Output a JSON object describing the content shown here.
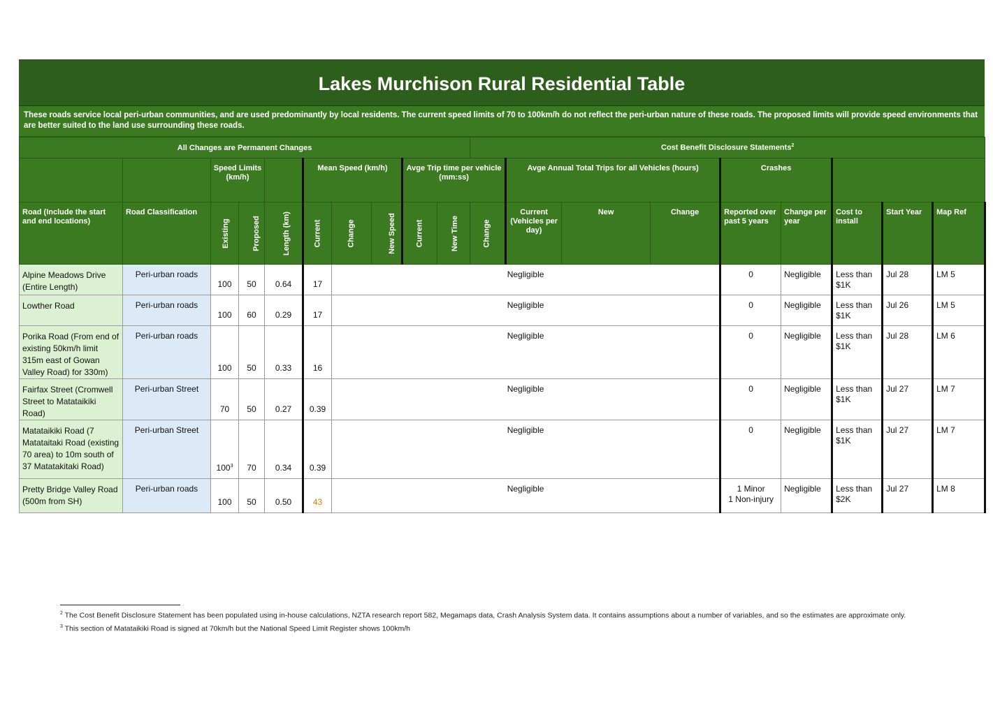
{
  "title": "Lakes Murchison Rural Residential Table",
  "intro": "These roads service local peri-urban communities, and are used predominantly by local residents.  The current speed limits of 70 to 100km/h do not reflect the peri-urban nature of these roads.  The proposed limits will provide speed environments that are better suited to the land use surrounding these roads.",
  "band": {
    "left": "All Changes are Permanent Changes",
    "right": "Cost Benefit Disclosure Statements",
    "right_sup": "2"
  },
  "groups": {
    "speed_limits": "Speed Limits (km/h)",
    "mean_speed": "Mean Speed (km/h)",
    "trip_time": "Avge Trip time per vehicle (mm:ss)",
    "annual_trips": "Avge Annual Total Trips for all Vehicles (hours)",
    "crashes": "Crashes"
  },
  "columns": {
    "road": "Road (Include the start and end locations)",
    "classification": "Road Classification",
    "existing": "Existing",
    "proposed": "Proposed",
    "length": "Length (km)",
    "ms_current": "Current",
    "ms_change": "Change",
    "ms_new": "New Speed",
    "tt_current": "Current",
    "tt_new": "New Time",
    "tt_change": "Change",
    "at_current": "Current (Vehicles per day)",
    "at_new": "New",
    "at_change": "Change",
    "cr_reported": "Reported over past 5 years",
    "cr_change": "Change per year",
    "cost": "Cost to install",
    "start": "Start Year",
    "map": "Map Ref"
  },
  "rows": [
    {
      "road": "Alpine Meadows Drive (Entire Length)",
      "classification": "Peri-urban roads",
      "existing": "100",
      "existing_sup": "",
      "proposed": "50",
      "length": "0.64",
      "mean_current": "17",
      "cbd": "Negligible",
      "crashes": "0",
      "crash_change": "Negligible",
      "cost": "Less than $1K",
      "start": "Jul 28",
      "map": "LM 5"
    },
    {
      "road": "Lowther Road",
      "classification": "Peri-urban roads",
      "existing": "100",
      "existing_sup": "",
      "proposed": "60",
      "length": "0.29",
      "mean_current": "17",
      "cbd": "Negligible",
      "crashes": "0",
      "crash_change": "Negligible",
      "cost": "Less than $1K",
      "start": "Jul 26",
      "map": "LM 5"
    },
    {
      "road": "Porika Road (From end of existing 50km/h limit 315m east of Gowan Valley Road) for 330m)",
      "classification": "Peri-urban roads",
      "existing": "100",
      "existing_sup": "",
      "proposed": "50",
      "length": "0.33",
      "mean_current": "16",
      "cbd": "Negligible",
      "crashes": "0",
      "crash_change": "Negligible",
      "cost": "Less than $1K",
      "start": "Jul 28",
      "map": "LM 6"
    },
    {
      "road": "Fairfax Street (Cromwell Street to Matataikiki Road)",
      "classification": "Peri-urban Street",
      "existing": "70",
      "existing_sup": "",
      "proposed": "50",
      "length": "0.27",
      "mean_current": "0.39",
      "cbd": "Negligible",
      "crashes": "0",
      "crash_change": "Negligible",
      "cost": "Less than $1K",
      "start": "Jul 27",
      "map": "LM 7"
    },
    {
      "road": "Matataikiki Road (7 Matataitaki Road (existing 70 area) to 10m south of 37 Matatakitaki Road)",
      "classification": "Peri-urban Street",
      "existing": "100",
      "existing_sup": "3",
      "proposed": "70",
      "length": "0.34",
      "mean_current": "0.39",
      "cbd": "Negligible",
      "crashes": "0",
      "crash_change": "Negligible",
      "cost": "Less than $1K",
      "start": "Jul 27",
      "map": "LM 7"
    },
    {
      "road": "Pretty Bridge Valley Road (500m from SH)",
      "classification": "Peri-urban roads",
      "existing": "100",
      "existing_sup": "",
      "proposed": "50",
      "length": "0.50",
      "mean_current": "43",
      "cbd": "Negligible",
      "crashes": "1 Minor\n1 Non-injury",
      "crash_change": "Negligible",
      "cost": "Less than $2K",
      "start": "Jul 27",
      "map": "LM 8"
    }
  ],
  "footnotes": [
    {
      "mark": "2",
      "text": "The Cost Benefit Disclosure Statement has been populated using in-house calculations, NZTA research report 582, Megamaps data, Crash Analysis System data. It contains assumptions about a number of variables, and so the estimates are approximate only."
    },
    {
      "mark": "3",
      "text": "This section of Matataikiki Road is signed at 70km/h but the National Speed Limit Register shows 100km/h"
    }
  ]
}
